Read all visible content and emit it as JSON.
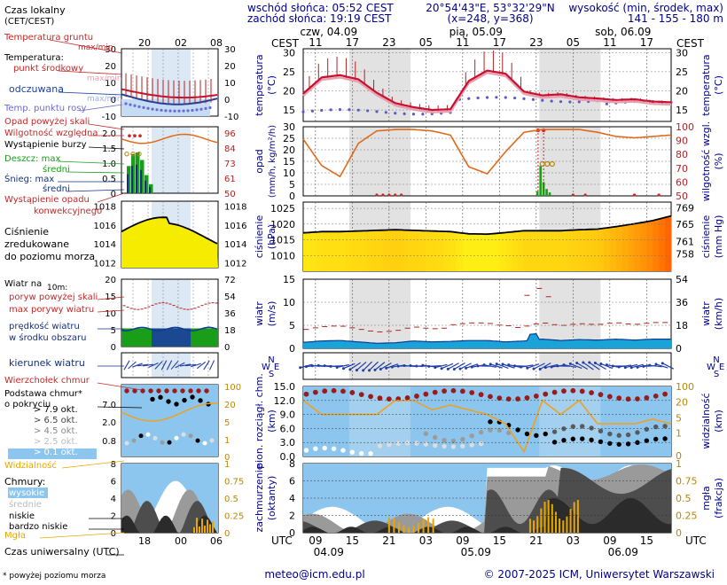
{
  "header": {
    "sunrise": "wschód słońca: 05:52 CEST",
    "sunset": "zachód słońca: 19:19 CEST",
    "coords": "20°54'43\"E, 53°32'29\"N",
    "grid": "(x=248, y=368)",
    "elevation_title": "wysokość (min, środek, max)",
    "elevation_values": "141 - 155 - 180 m"
  },
  "legend": {
    "local_time": "Czas lokalny",
    "local_time_zone": "(CET/CEST)",
    "legend_hours": [
      "20",
      "02",
      "08"
    ],
    "legend_hours_utc": [
      "18",
      "00",
      "06"
    ],
    "soil_temp": "Temperatura gruntu",
    "soil_maxmin": "max/min",
    "temperature": "Temperatura:",
    "mid_point": "punkt środkowy",
    "mid_maxmin": "max/min",
    "felt": "odczuwana",
    "felt_maxmin": "max/min",
    "dew_point": "Temp. punktu rosy",
    "precip_above": "Opad powyżej skali",
    "humidity": "Wilgotność względna",
    "storm": "Wystąpienie burzy",
    "rain_max": "Deszcz: max",
    "rain_mid": "średni",
    "snow_max": "Śnieg: max",
    "snow_mid": "średni",
    "conv": "Wystąpienie opadu",
    "conv2": "konwekcyjnego",
    "pressure1": "Ciśnienie",
    "pressure2": "zredukowane",
    "pressure3": "do poziomu morza",
    "wind_title": "Wiatr na",
    "wind_level": "10m:",
    "gust_above": "poryw powyżej skali",
    "gust_max": "max porywy wiatru",
    "wind_speed": "prędkość wiatru",
    "wind_area": "w środku obszaru",
    "wind_dir": "kierunek wiatru",
    "cloud_top": "Wierzchołek chmur",
    "cloud_base": "Podstawa chmur*",
    "cloud_cover": "o pokryciu",
    "okt": [
      "> 7.9 okt.",
      "> 6.5 okt.",
      "> 4.5 okt.",
      "> 2.5 okt.",
      "> 0.1 okt."
    ],
    "visibility": "Widzialność",
    "clouds": "Chmury:",
    "high": "wysokie",
    "mid": "średnie",
    "low": "niskie",
    "very_low": "bardzo niskie",
    "fog": "Mgła",
    "utc_time": "Czas uniwersalny (UTC)",
    "footnote": "* powyżej poziomu morza"
  },
  "legend_axes": {
    "temp_left": [
      "30",
      "20",
      "10",
      "0",
      "-10"
    ],
    "temp_right": [
      "30",
      "20",
      "10",
      "0",
      "-10"
    ],
    "precip_left": [
      "2.0",
      "1.5",
      "1.0",
      "0.5",
      "0"
    ],
    "precip_right": [
      "96",
      "84",
      "73",
      "61",
      "50"
    ],
    "pres_left": [
      "1018",
      "1016",
      "1014",
      "1012"
    ],
    "pres_right": [
      "1018",
      "1016",
      "1014",
      "1012"
    ],
    "wind_left": [
      "20",
      "15",
      "10",
      "5",
      "0"
    ],
    "wind_right": [
      "72",
      "54",
      "36",
      "18",
      "0"
    ],
    "cloud_left": [
      "7.0",
      "2.0",
      "0.8"
    ],
    "cloud_right": [
      "100",
      "20",
      "5",
      "1",
      "0"
    ],
    "cc_left": [
      "8",
      "6",
      "4",
      "2",
      "0"
    ],
    "cc_right": [
      "1",
      "0.75",
      "0.5",
      "0.25",
      "0"
    ]
  },
  "chart": {
    "cest_label": "CEST",
    "utc_label": "UTC",
    "days_top": [
      "czw, 04.09",
      "pią, 05.09",
      "sob, 06.09"
    ],
    "hours_top": [
      "11",
      "17",
      "23",
      "05",
      "11",
      "17",
      "23",
      "05",
      "11",
      "17"
    ],
    "hours_bottom": [
      "09",
      "15",
      "21",
      "03",
      "09",
      "15",
      "21",
      "03",
      "09",
      "15"
    ],
    "days_bottom": [
      "04.09",
      "05.09",
      "06.09"
    ],
    "titles": {
      "temp_l": "temperatura",
      "temp_lu": "(°C)",
      "temp_r": "temperatura",
      "temp_ru": "(°C)",
      "precip_l": "opad",
      "precip_lu": "(mm/h, kg/m²/h)",
      "precip_r": "wilgotność wzgl.",
      "precip_ru": "(%)",
      "pres_l": "ciśnienie",
      "pres_lu": "(hPa)",
      "pres_r": "ciśnienie",
      "pres_ru": "(mm Hg)",
      "wind_l": "wiatr",
      "wind_lu": "(m/s)",
      "wind_r": "wiatr",
      "wind_ru": "(km/h)",
      "cloud_l": "pion. rozciągł. chm.",
      "cloud_lu": "(km)",
      "cloud_r": "widzialność",
      "cloud_ru": "(km)",
      "cc_l": "zachmurzenie",
      "cc_lu": "(oktanty)",
      "cc_r": "mgła",
      "cc_ru": "(frakcja)"
    },
    "axes": {
      "temp_left": [
        "30",
        "25",
        "20",
        "15"
      ],
      "temp_right": [
        "30",
        "25",
        "20",
        "15"
      ],
      "precip_left": [
        "30",
        "25",
        "20",
        "15",
        "10",
        "5",
        "0"
      ],
      "precip_right": [
        "100",
        "90",
        "80",
        "70",
        "60",
        "50"
      ],
      "pres_left": [
        "1025",
        "1020",
        "1015",
        "1010"
      ],
      "pres_right": [
        "769",
        "765",
        "761",
        "758"
      ],
      "wind_left": [
        "15",
        "10",
        "5",
        "0"
      ],
      "wind_right": [
        "54",
        "36",
        "18",
        "0"
      ],
      "cloud_left": [
        "15.0",
        "12.0",
        "9.0",
        "6.0",
        "3.0",
        "0.0"
      ],
      "cloud_right": [
        "100",
        "20",
        "5",
        "1",
        "0"
      ],
      "cc_left": [
        "8",
        "6",
        "4",
        "2",
        "0"
      ],
      "cc_right": [
        "1",
        "0.75",
        "0.5",
        "0.25",
        "0"
      ]
    },
    "compass": [
      "N",
      "W",
      "S",
      "E"
    ]
  },
  "footer": {
    "email": "meteo@icm.edu.pl",
    "copyright": "© 2007-2025 ICM, Uniwersytet Warszawski"
  },
  "chart_data": {
    "type": "line",
    "x_unit": "hours from 04.09 07:00 UTC",
    "x": [
      0,
      3,
      6,
      9,
      12,
      15,
      18,
      21,
      24,
      27,
      30,
      33,
      36,
      39,
      42,
      45,
      48,
      51,
      54,
      57,
      60
    ],
    "series": [
      {
        "name": "temperatura",
        "unit": "°C",
        "values": [
          19.3,
          23.5,
          24.1,
          23.0,
          19.5,
          16.8,
          15.7,
          15.0,
          15.2,
          22.6,
          25.3,
          24.5,
          19.8,
          18.8,
          19.1,
          18.3,
          18.0,
          17.6,
          17.8,
          17.2,
          17.0
        ]
      },
      {
        "name": "ciśnienie",
        "unit": "hPa",
        "values": [
          1017.2,
          1017.6,
          1017.6,
          1017.8,
          1018.0,
          1018.2,
          1018.0,
          1017.8,
          1017.6,
          1016.9,
          1016.8,
          1017.3,
          1017.9,
          1017.9,
          1017.9,
          1018.2,
          1018.4,
          1019.2,
          1020.1,
          1021.1,
          1022.6
        ]
      },
      {
        "name": "wilgotność wzgl.",
        "unit": "%",
        "values": [
          91,
          72,
          64,
          88,
          97,
          98,
          98,
          97,
          94,
          71,
          66,
          82,
          96,
          98,
          98,
          98,
          96,
          93,
          92,
          93,
          94
        ]
      },
      {
        "name": "wiatr",
        "unit": "m/s",
        "values": [
          1.3,
          1.6,
          1.7,
          1.4,
          1.1,
          1.2,
          1.6,
          1.4,
          1.5,
          1.7,
          1.7,
          1.4,
          1.6,
          2.0,
          1.7,
          1.9,
          1.8,
          2.0,
          1.8,
          2.0,
          2.0
        ]
      },
      {
        "name": "widzialność",
        "unit": "km",
        "values": [
          12,
          9,
          9,
          9,
          9,
          12,
          12,
          10,
          11,
          10,
          9,
          7,
          1,
          12,
          9,
          12,
          7,
          7,
          7,
          8,
          7
        ]
      }
    ],
    "ylim": {
      "temperatura": [
        12,
        31
      ],
      "opad": [
        0,
        30
      ],
      "ciśnienie": [
        1005,
        1027
      ],
      "wiatr": [
        0,
        15
      ],
      "widzialność": [
        0,
        15
      ]
    }
  }
}
